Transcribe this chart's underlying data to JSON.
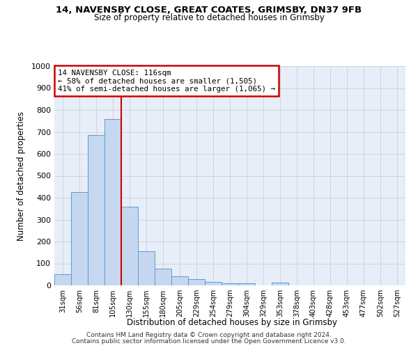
{
  "title1": "14, NAVENSBY CLOSE, GREAT COATES, GRIMSBY, DN37 9FB",
  "title2": "Size of property relative to detached houses in Grimsby",
  "xlabel": "Distribution of detached houses by size in Grimsby",
  "ylabel": "Number of detached properties",
  "footnote1": "Contains HM Land Registry data © Crown copyright and database right 2024.",
  "footnote2": "Contains public sector information licensed under the Open Government Licence v3.0.",
  "bar_labels": [
    "31sqm",
    "56sqm",
    "81sqm",
    "105sqm",
    "130sqm",
    "155sqm",
    "180sqm",
    "205sqm",
    "229sqm",
    "254sqm",
    "279sqm",
    "304sqm",
    "329sqm",
    "353sqm",
    "378sqm",
    "403sqm",
    "428sqm",
    "453sqm",
    "477sqm",
    "502sqm",
    "527sqm"
  ],
  "bar_values": [
    52,
    425,
    685,
    760,
    360,
    155,
    75,
    40,
    27,
    17,
    10,
    8,
    0,
    12,
    0,
    0,
    0,
    0,
    0,
    0,
    0
  ],
  "bar_color": "#c5d8f0",
  "bar_edge_color": "#5b9bd5",
  "ylim": [
    0,
    1000
  ],
  "yticks": [
    0,
    100,
    200,
    300,
    400,
    500,
    600,
    700,
    800,
    900,
    1000
  ],
  "annotation_text1": "14 NAVENSBY CLOSE: 116sqm",
  "annotation_text2": "← 58% of detached houses are smaller (1,505)",
  "annotation_text3": "41% of semi-detached houses are larger (1,065) →",
  "annotation_box_color": "#ffffff",
  "annotation_box_edge_color": "#cc0000",
  "red_line_color": "#cc0000",
  "grid_color": "#c8d0dc",
  "background_color": "#e8eef8"
}
